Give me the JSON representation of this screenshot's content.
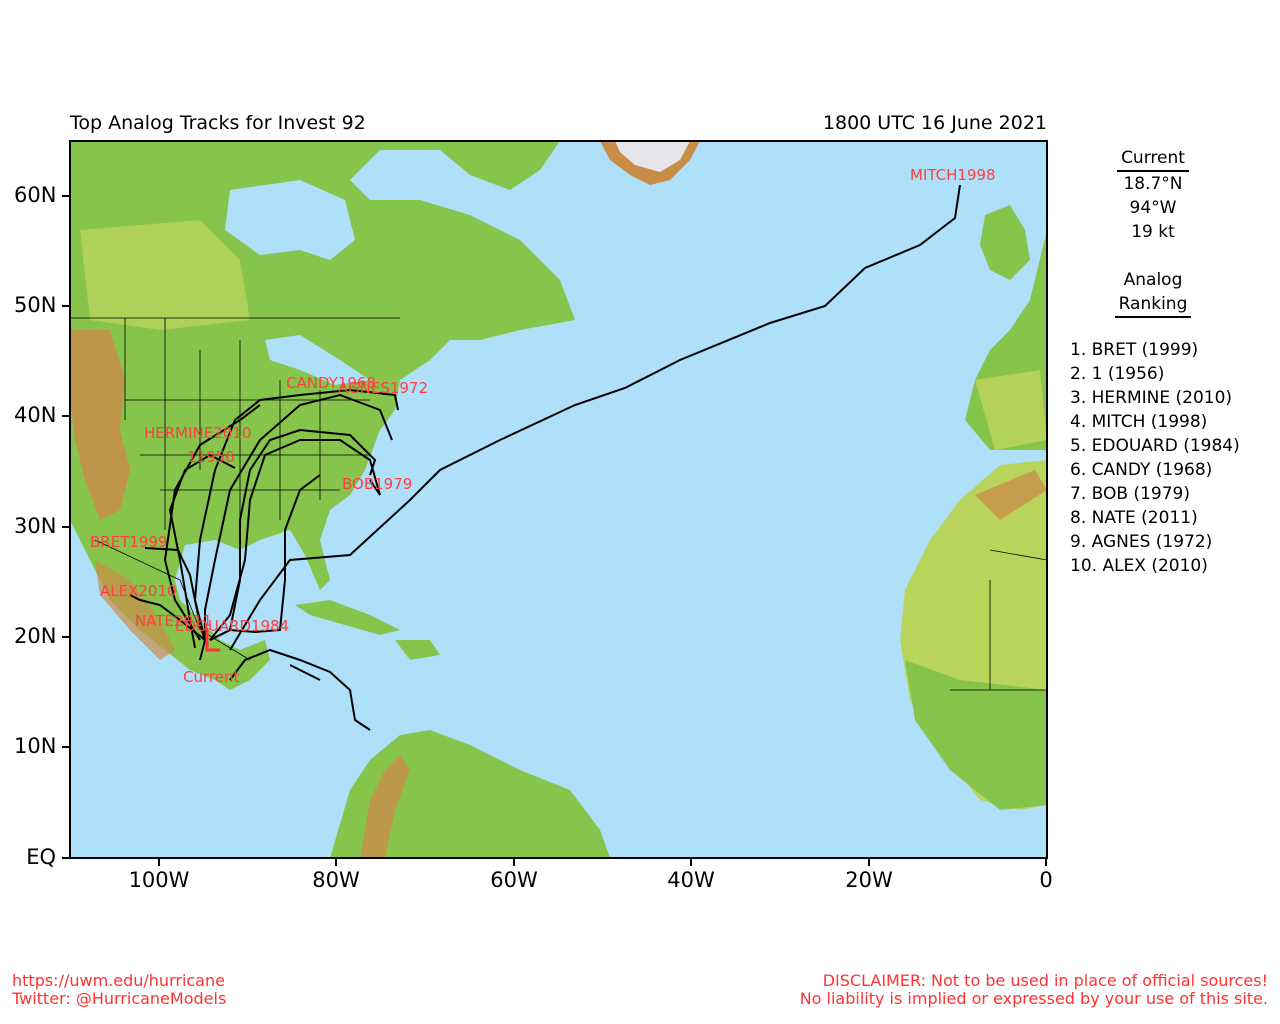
{
  "title_left": "Top Analog Tracks for Invest 92",
  "title_right": "1800 UTC 16 June 2021",
  "y_axis_labels": [
    "60N",
    "50N",
    "40N",
    "30N",
    "20N",
    "10N",
    "EQ"
  ],
  "x_axis_labels": [
    "100W",
    "80W",
    "60W",
    "40W",
    "20W",
    "0"
  ],
  "current": {
    "heading": "Current",
    "lat": "18.7°N",
    "lon": "94°W",
    "speed": "19 kt",
    "marker_label": "Current"
  },
  "analog_heading_1": "Analog",
  "analog_heading_2": "Ranking",
  "rankings": [
    "1.  BRET (1999)",
    "2.  1 (1956)",
    "3.  HERMINE (2010)",
    "4.  MITCH (1998)",
    "5.  EDOUARD (1984)",
    "6.  CANDY (1968)",
    "7.  BOB (1979)",
    "8.  NATE (2011)",
    "9.  AGNES (1972)",
    "10. ALEX (2010)"
  ],
  "track_labels": {
    "mitch": "MITCH1998",
    "candy": "CANDY1968",
    "agnes": "AGNES1972",
    "hermine": "HERMINE2010",
    "one": "11956",
    "bob": "BOB1979",
    "bret": "BRET1999",
    "alex": "ALEX2010",
    "nate": "NATE2011",
    "edouard": "EDOUARD1984"
  },
  "footer": {
    "url": "https://uwm.edu/hurricane",
    "twitter": "Twitter: @HurricaneModels",
    "disclaimer_1": "DISCLAIMER: Not to be used in place of official sources!",
    "disclaimer_2": "No liability is implied or expressed by your use of this site."
  },
  "colors": {
    "ocean": "#aee0fa",
    "land_low": "#7cc04a",
    "land_mid": "#b9d45a",
    "land_high": "#c98d4a",
    "label_red": "#ff4040",
    "track": "#000000"
  }
}
